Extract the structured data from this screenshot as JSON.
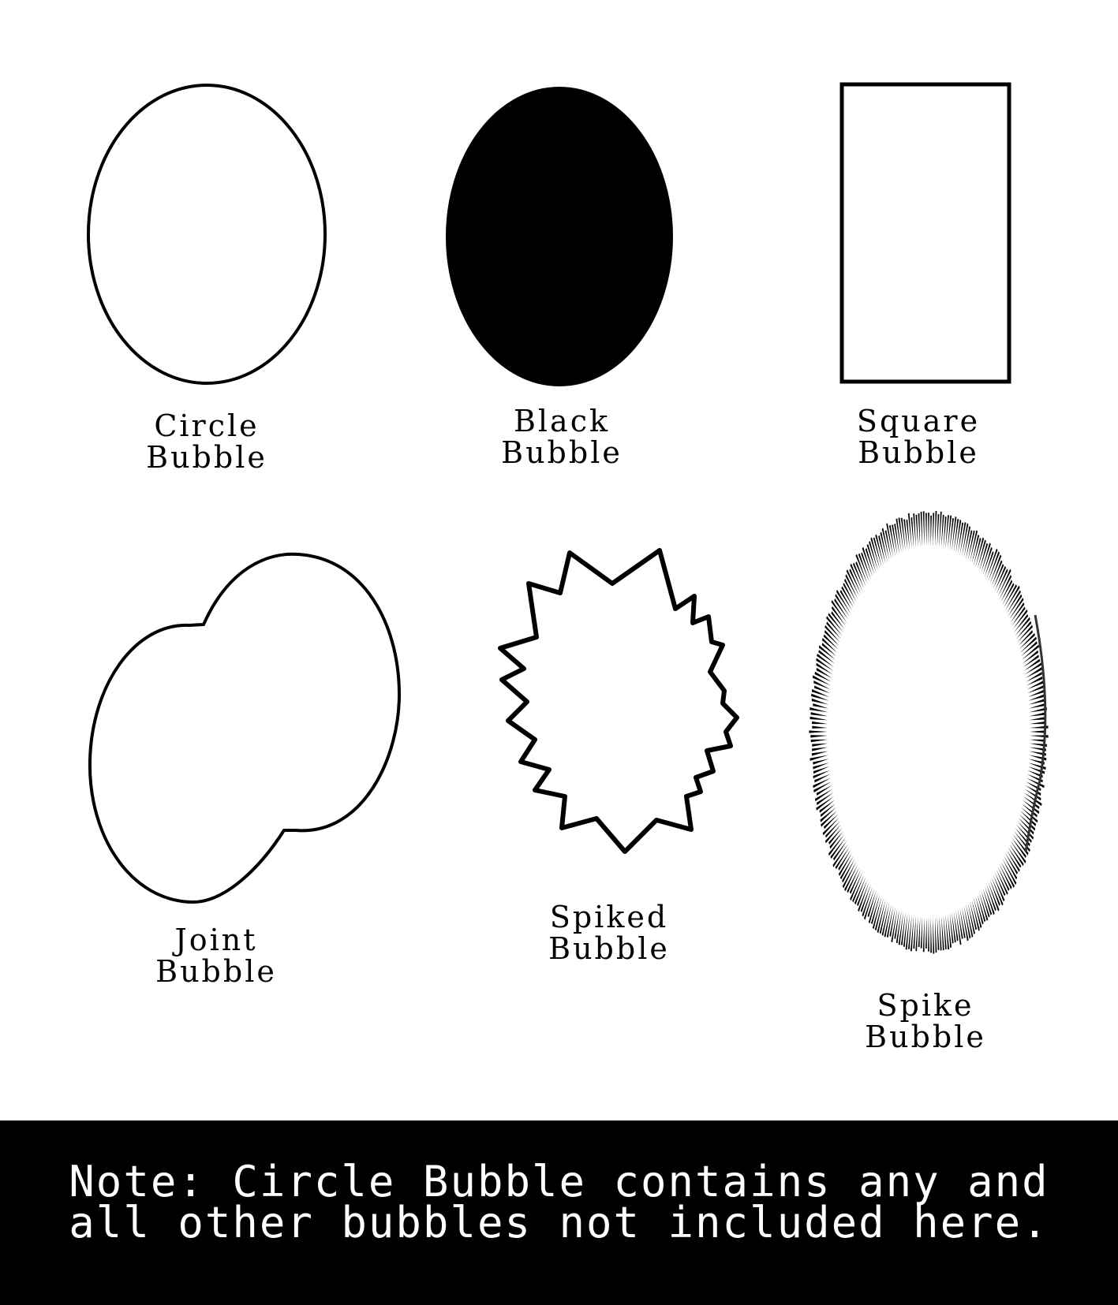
{
  "bubbles": [
    {
      "id": "circle",
      "line1": "Circle",
      "line2": "Bubble",
      "shape": "outlined-ellipse"
    },
    {
      "id": "black",
      "line1": "Black",
      "line2": "Bubble",
      "shape": "filled-ellipse"
    },
    {
      "id": "square",
      "line1": "Square",
      "line2": "Bubble",
      "shape": "outlined-rectangle"
    },
    {
      "id": "joint",
      "line1": "Joint",
      "line2": "Bubble",
      "shape": "joined-ellipses"
    },
    {
      "id": "spiked",
      "line1": "Spiked",
      "line2": "Bubble",
      "shape": "jagged-burst"
    },
    {
      "id": "spike",
      "line1": "Spike",
      "line2": "Bubble",
      "shape": "radial-line-ellipse"
    }
  ],
  "note": {
    "line1": "Note: Circle Bubble contains any and",
    "line2": "all other bubbles not included here."
  },
  "colors": {
    "background": "#ffffff",
    "ink": "#000000",
    "note_background": "#000000",
    "note_text": "#ffffff"
  }
}
